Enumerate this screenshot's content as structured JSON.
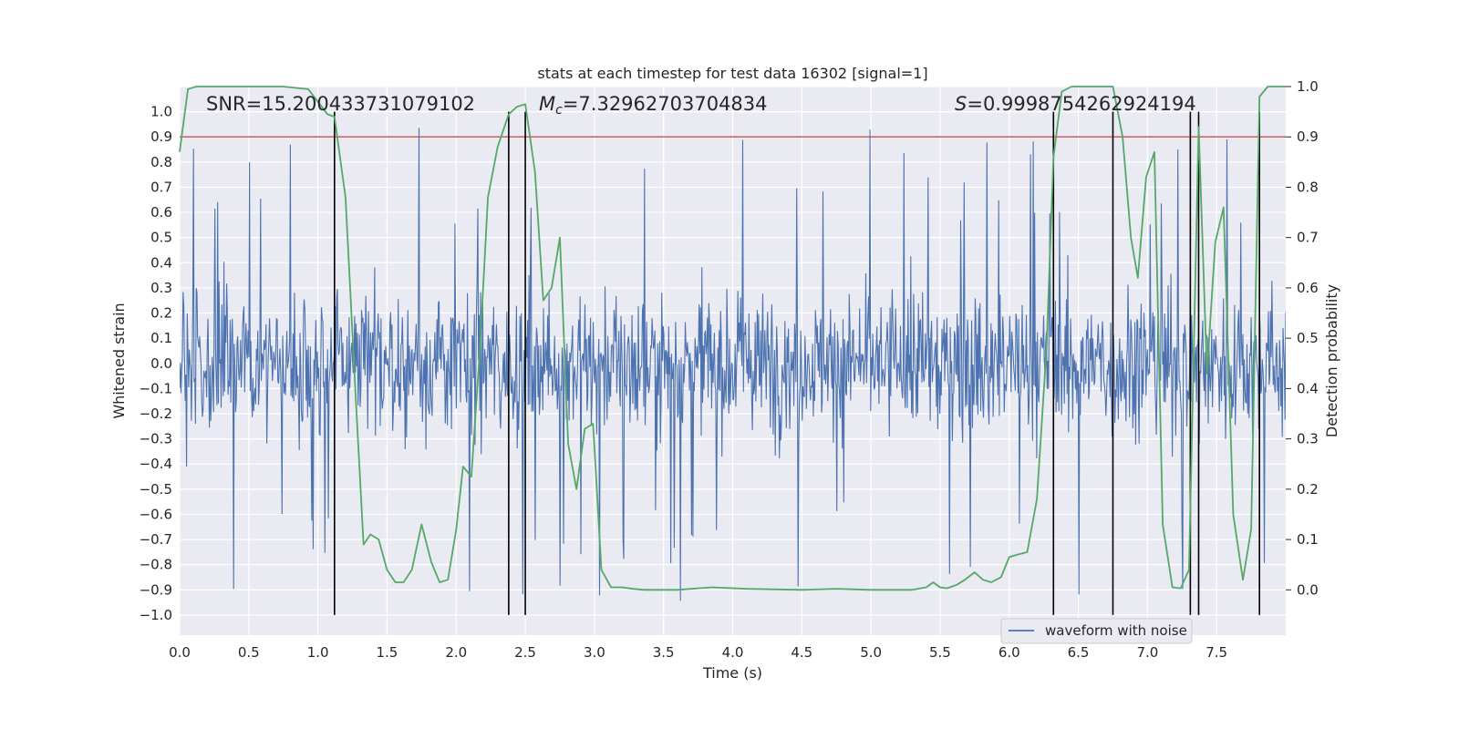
{
  "chart_data": {
    "type": "line",
    "title": "stats at each timestep for test data 16302 [signal=1]",
    "xlabel": "Time (s)",
    "ylabel_left": "Whitened strain",
    "ylabel_right": "Detection probability",
    "xlim": [
      0.0,
      8.0
    ],
    "ylim_left": [
      -1.08,
      1.1
    ],
    "ylim_right": [
      -0.09,
      1.0
    ],
    "x_ticks": [
      "0.0",
      "0.5",
      "1.0",
      "1.5",
      "2.0",
      "2.5",
      "3.0",
      "3.5",
      "4.0",
      "4.5",
      "5.0",
      "5.5",
      "6.0",
      "6.5",
      "7.0",
      "7.5"
    ],
    "y_left_ticks": [
      "1.0",
      "0.9",
      "0.8",
      "0.7",
      "0.6",
      "0.5",
      "0.4",
      "0.3",
      "0.2",
      "0.1",
      "0.0",
      "−0.1",
      "−0.2",
      "−0.3",
      "−0.4",
      "−0.5",
      "−0.6",
      "−0.7",
      "−0.8",
      "−0.9",
      "−1.0"
    ],
    "y_right_ticks": [
      "1.0",
      "0.9",
      "0.8",
      "0.7",
      "0.6",
      "0.5",
      "0.4",
      "0.3",
      "0.2",
      "0.1",
      "0.0"
    ],
    "annotations": {
      "snr": "SNR=15.200433731079102",
      "mc_symbol": "M",
      "mc_sub": "c",
      "mc_value": "=7.32962703704834",
      "s_symbol": "S",
      "s_value": "=0.9998754262924194"
    },
    "legend": {
      "label": "waveform with noise",
      "location": "lower-right"
    },
    "threshold": {
      "value": 0.9,
      "axis": "right",
      "color": "#c44e52"
    },
    "vertical_lines": [
      1.12,
      2.38,
      2.5,
      6.32,
      6.75,
      7.31,
      7.37,
      7.81
    ],
    "waveform": {
      "name": "waveform with noise",
      "color": "#4c72b0",
      "samples": 1600,
      "typical_range": [
        -0.45,
        0.45
      ],
      "note": "dense whitened strain noise"
    },
    "series": [
      {
        "name": "Detection probability",
        "axis": "right",
        "color": "#55a868",
        "x": [
          0.0,
          0.06,
          0.12,
          0.2,
          0.35,
          0.55,
          0.75,
          0.93,
          1.0,
          1.07,
          1.12,
          1.2,
          1.27,
          1.33,
          1.38,
          1.44,
          1.5,
          1.56,
          1.62,
          1.68,
          1.75,
          1.82,
          1.88,
          1.94,
          2.0,
          2.05,
          2.11,
          2.17,
          2.23,
          2.3,
          2.38,
          2.44,
          2.5,
          2.57,
          2.63,
          2.69,
          2.75,
          2.81,
          2.87,
          2.93,
          2.99,
          3.05,
          3.12,
          3.2,
          3.28,
          3.36,
          3.6,
          3.85,
          4.1,
          4.5,
          4.75,
          5.0,
          5.3,
          5.4,
          5.45,
          5.5,
          5.55,
          5.62,
          5.68,
          5.75,
          5.81,
          5.87,
          5.94,
          6.0,
          6.06,
          6.13,
          6.2,
          6.27,
          6.32,
          6.38,
          6.45,
          6.55,
          6.65,
          6.75,
          6.82,
          6.88,
          6.93,
          6.99,
          7.05,
          7.11,
          7.18,
          7.24,
          7.3,
          7.37,
          7.43,
          7.49,
          7.55,
          7.62,
          7.69,
          7.75,
          7.81,
          7.87,
          7.93,
          8.0
        ],
        "values": [
          0.87,
          0.995,
          1.0,
          1.0,
          1.0,
          1.0,
          1.0,
          0.995,
          0.97,
          0.945,
          0.94,
          0.78,
          0.4,
          0.09,
          0.11,
          0.1,
          0.04,
          0.015,
          0.015,
          0.04,
          0.13,
          0.055,
          0.015,
          0.02,
          0.12,
          0.245,
          0.225,
          0.47,
          0.78,
          0.88,
          0.945,
          0.96,
          0.965,
          0.83,
          0.575,
          0.6,
          0.7,
          0.29,
          0.2,
          0.32,
          0.33,
          0.04,
          0.005,
          0.005,
          0.002,
          0.0,
          0.0,
          0.005,
          0.002,
          0.0,
          0.002,
          0.0,
          0.0,
          0.005,
          0.015,
          0.005,
          0.003,
          0.01,
          0.02,
          0.035,
          0.02,
          0.015,
          0.025,
          0.065,
          0.07,
          0.075,
          0.18,
          0.48,
          0.86,
          0.99,
          1.0,
          1.0,
          1.0,
          1.0,
          0.9,
          0.7,
          0.62,
          0.82,
          0.87,
          0.13,
          0.005,
          0.003,
          0.04,
          0.92,
          0.43,
          0.69,
          0.76,
          0.15,
          0.02,
          0.12,
          0.98,
          1.0,
          1.0,
          1.0
        ]
      }
    ]
  }
}
